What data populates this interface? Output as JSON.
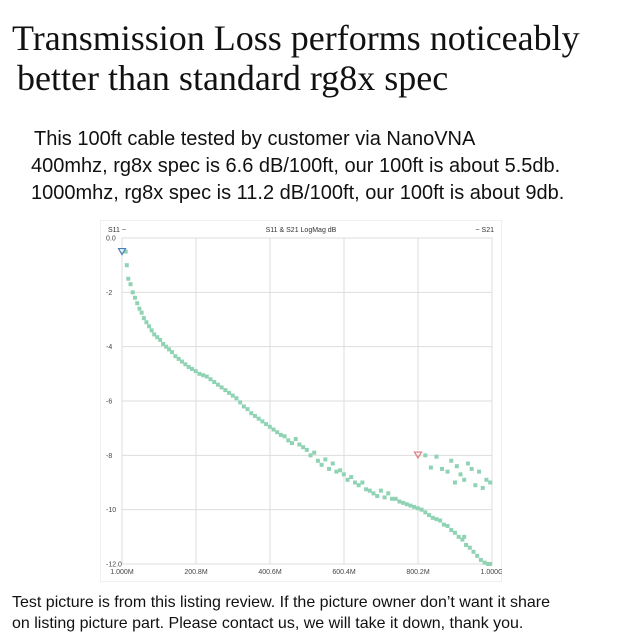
{
  "headline": {
    "line1": "Transmission Loss performs noticeably",
    "line2": "better than standard rg8x spec"
  },
  "description": {
    "line1": "This 100ft cable tested by customer via NanoVNA",
    "line2": "400mhz, rg8x spec is 6.6 dB/100ft, our 100ft is about 5.5db.",
    "line3": "1000mhz, rg8x spec is 11.2 dB/100ft, our 100ft is about 9db."
  },
  "footer": {
    "line1": "Test picture is from this listing review. If the picture owner don’t want it share",
    "line2": "on listing picture part. Please contact us, we will take it down, thank you."
  },
  "chart_data": {
    "type": "scatter",
    "title": "S11 & S21 LogMag dB",
    "left_label": "S11 ~",
    "right_label": "~ S21",
    "x_unit": "MHz",
    "xlim": [
      1.0,
      1000.0
    ],
    "ylim": [
      -12.0,
      0.0
    ],
    "x_tick_values": [
      1.0,
      200.8,
      400.6,
      600.4,
      800.2,
      1000.0
    ],
    "x_tick_labels": [
      "1.000M",
      "200.8M",
      "400.6M",
      "600.4M",
      "800.2M",
      "1.000G"
    ],
    "y_tick_values": [
      0,
      -2,
      -4,
      -6,
      -8,
      -10,
      -12
    ],
    "y_tick_labels": [
      "0.0",
      "-2",
      "-4",
      "-6",
      "-8",
      "-10",
      "-12.0"
    ],
    "grid": true,
    "marker_colors": {
      "points": "#8fd3b4",
      "marker": "#e07a80",
      "start_marker": "#4a7fb5"
    },
    "markers": [
      {
        "name": "start",
        "x": 1.0,
        "y": -0.5
      },
      {
        "name": "end",
        "x": 800.2,
        "y": -7.99
      }
    ],
    "series": [
      {
        "points": [
          [
            11,
            -0.5
          ],
          [
            14,
            -1.0
          ],
          [
            18,
            -1.5
          ],
          [
            24,
            -1.7
          ],
          [
            30,
            -2.0
          ],
          [
            36,
            -2.2
          ],
          [
            42,
            -2.4
          ],
          [
            48,
            -2.6
          ],
          [
            54,
            -2.75
          ],
          [
            60,
            -2.95
          ],
          [
            67,
            -3.1
          ],
          [
            74,
            -3.25
          ],
          [
            81,
            -3.4
          ],
          [
            88,
            -3.55
          ],
          [
            96,
            -3.65
          ],
          [
            104,
            -3.75
          ],
          [
            112,
            -3.9
          ],
          [
            120,
            -4.0
          ],
          [
            128,
            -4.1
          ],
          [
            136,
            -4.2
          ],
          [
            145,
            -4.35
          ],
          [
            154,
            -4.45
          ],
          [
            163,
            -4.55
          ],
          [
            172,
            -4.65
          ],
          [
            181,
            -4.75
          ],
          [
            190,
            -4.82
          ],
          [
            200,
            -4.9
          ],
          [
            210,
            -5.0
          ],
          [
            220,
            -5.05
          ],
          [
            230,
            -5.1
          ],
          [
            240,
            -5.2
          ],
          [
            250,
            -5.3
          ],
          [
            260,
            -5.4
          ],
          [
            270,
            -5.5
          ],
          [
            280,
            -5.6
          ],
          [
            290,
            -5.7
          ],
          [
            300,
            -5.8
          ],
          [
            310,
            -5.9
          ],
          [
            320,
            -6.05
          ],
          [
            330,
            -6.2
          ],
          [
            340,
            -6.3
          ],
          [
            350,
            -6.45
          ],
          [
            360,
            -6.55
          ],
          [
            370,
            -6.65
          ],
          [
            380,
            -6.75
          ],
          [
            390,
            -6.85
          ],
          [
            400,
            -6.95
          ],
          [
            410,
            -7.05
          ],
          [
            420,
            -7.15
          ],
          [
            430,
            -7.25
          ],
          [
            440,
            -7.3
          ],
          [
            450,
            -7.45
          ],
          [
            460,
            -7.55
          ],
          [
            470,
            -7.4
          ],
          [
            480,
            -7.6
          ],
          [
            490,
            -7.7
          ],
          [
            500,
            -7.8
          ],
          [
            510,
            -8.0
          ],
          [
            520,
            -7.9
          ],
          [
            530,
            -8.2
          ],
          [
            540,
            -8.35
          ],
          [
            550,
            -8.15
          ],
          [
            560,
            -8.5
          ],
          [
            570,
            -8.3
          ],
          [
            580,
            -8.6
          ],
          [
            590,
            -8.55
          ],
          [
            600,
            -8.7
          ],
          [
            610,
            -8.9
          ],
          [
            620,
            -8.8
          ],
          [
            630,
            -9.0
          ],
          [
            640,
            -9.1
          ],
          [
            650,
            -9.0
          ],
          [
            660,
            -9.25
          ],
          [
            670,
            -9.3
          ],
          [
            680,
            -9.4
          ],
          [
            690,
            -9.5
          ],
          [
            700,
            -9.3
          ],
          [
            710,
            -9.55
          ],
          [
            720,
            -9.4
          ],
          [
            730,
            -9.6
          ],
          [
            740,
            -9.6
          ],
          [
            750,
            -9.7
          ],
          [
            760,
            -9.75
          ],
          [
            770,
            -9.8
          ],
          [
            780,
            -9.85
          ],
          [
            790,
            -9.9
          ],
          [
            800,
            -9.95
          ],
          [
            810,
            -10.0
          ],
          [
            820,
            -10.1
          ],
          [
            830,
            -10.2
          ],
          [
            840,
            -10.3
          ],
          [
            850,
            -10.35
          ],
          [
            860,
            -10.4
          ],
          [
            870,
            -10.55
          ],
          [
            880,
            -10.6
          ],
          [
            890,
            -10.75
          ],
          [
            900,
            -10.85
          ],
          [
            910,
            -11.0
          ],
          [
            920,
            -11.1
          ],
          [
            930,
            -11.3
          ],
          [
            940,
            -11.4
          ],
          [
            950,
            -11.55
          ],
          [
            960,
            -11.7
          ],
          [
            970,
            -11.85
          ],
          [
            980,
            -11.95
          ],
          [
            990,
            -12.0
          ],
          [
            995,
            -12.0
          ],
          [
            820,
            -8.0
          ],
          [
            835,
            -8.45
          ],
          [
            850,
            -8.05
          ],
          [
            865,
            -8.5
          ],
          [
            880,
            -8.6
          ],
          [
            890,
            -8.2
          ],
          [
            900,
            -9.0
          ],
          [
            905,
            -8.4
          ],
          [
            915,
            -8.7
          ],
          [
            925,
            -8.9
          ],
          [
            935,
            -8.3
          ],
          [
            945,
            -8.5
          ],
          [
            955,
            -9.1
          ],
          [
            965,
            -8.6
          ],
          [
            975,
            -9.2
          ],
          [
            985,
            -8.9
          ],
          [
            995,
            -9.0
          ],
          [
            925,
            -11.0
          ]
        ]
      }
    ]
  }
}
